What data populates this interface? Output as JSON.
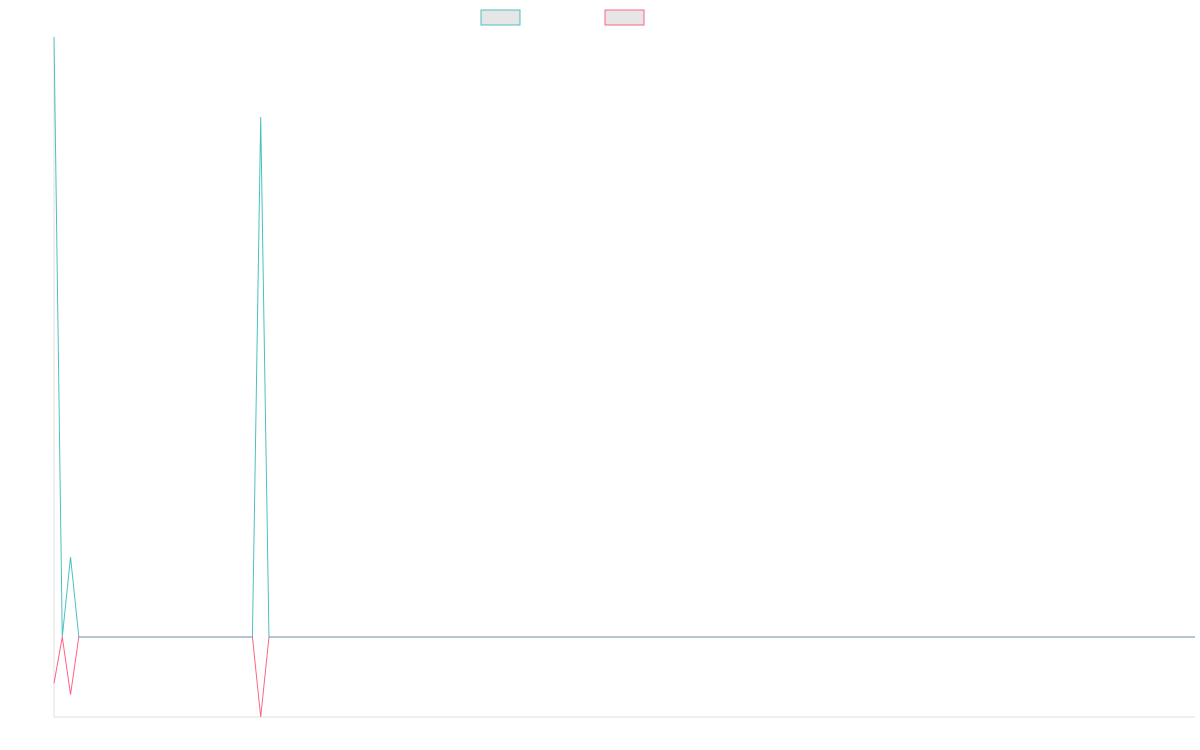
{
  "chart_data": {
    "type": "line",
    "title": "",
    "xlabel": "",
    "ylabel": "",
    "legend_position": "top-center",
    "grid": false,
    "ylim": [
      -1,
      7.5
    ],
    "x": [
      0,
      1,
      2,
      3,
      4,
      5,
      6,
      7,
      8,
      9,
      10,
      11,
      12,
      13,
      14,
      15,
      16,
      17,
      18,
      19,
      20,
      21,
      22,
      23,
      24,
      25,
      26,
      27,
      28,
      29,
      30,
      31,
      32,
      33,
      34,
      35,
      36,
      37,
      38,
      39,
      40,
      41,
      42,
      43,
      44,
      45,
      46,
      47,
      48,
      49,
      50,
      51,
      52,
      53,
      54,
      55,
      56,
      57,
      58,
      59,
      60,
      61,
      62,
      63,
      64,
      65,
      66,
      67,
      68,
      69,
      70,
      71,
      72,
      73,
      74,
      75,
      76,
      77,
      78,
      79,
      80,
      81,
      82,
      83,
      84,
      85,
      86,
      87,
      88,
      89,
      90,
      91,
      92,
      93,
      94,
      95,
      96,
      97,
      98,
      99,
      100,
      101,
      102,
      103,
      104,
      105,
      106,
      107,
      108,
      109,
      110,
      111,
      112,
      113,
      114,
      115,
      116,
      117,
      118,
      119,
      120,
      121,
      122,
      123,
      124,
      125,
      126,
      127,
      128,
      129,
      130,
      131,
      132,
      133,
      134,
      135,
      136,
      137,
      138
    ],
    "xlim": [
      0,
      138
    ],
    "series": [
      {
        "name": "",
        "color": "#4bc0c0",
        "values": [
          7.5,
          0,
          1,
          0,
          0,
          0,
          0,
          0,
          0,
          0,
          0,
          0,
          0,
          0,
          0,
          0,
          0,
          0,
          0,
          0,
          0,
          0,
          0,
          0,
          0,
          6.5,
          0,
          0,
          0,
          0,
          0,
          0,
          0,
          0,
          0,
          0,
          0,
          0,
          0,
          0,
          0,
          0,
          0,
          0,
          0,
          0,
          0,
          0,
          0,
          0,
          0,
          0,
          0,
          0,
          0,
          0,
          0,
          0,
          0,
          0,
          0,
          0,
          0,
          0,
          0,
          0,
          0,
          0,
          0,
          0,
          0,
          0,
          0,
          0,
          0,
          0,
          0,
          0,
          0,
          0,
          0,
          0,
          0,
          0,
          0,
          0,
          0,
          0,
          0,
          0,
          0,
          0,
          0,
          0,
          0,
          0,
          0,
          0,
          0,
          0,
          0,
          0,
          0,
          0,
          0,
          0,
          0,
          0,
          0,
          0,
          0,
          0,
          0,
          0,
          0,
          0,
          0,
          0,
          0,
          0,
          0,
          0,
          0,
          0,
          0,
          0,
          0,
          0,
          0,
          0,
          0,
          0,
          0,
          0,
          0,
          0,
          0,
          0,
          0
        ]
      },
      {
        "name": "",
        "color": "#ff6384",
        "values": [
          -0.58,
          0,
          -0.72,
          0,
          0,
          0,
          0,
          0,
          0,
          0,
          0,
          0,
          0,
          0,
          0,
          0,
          0,
          0,
          0,
          0,
          0,
          0,
          0,
          0,
          0,
          -1,
          0,
          0,
          0,
          0,
          0,
          0,
          0,
          0,
          0,
          0,
          0,
          0,
          0,
          0,
          0,
          0,
          0,
          0,
          0,
          0,
          0,
          0,
          0,
          0,
          0,
          0,
          0,
          0,
          0,
          0,
          0,
          0,
          0,
          0,
          0,
          0,
          0,
          0,
          0,
          0,
          0,
          0,
          0,
          0,
          0,
          0,
          0,
          0,
          0,
          0,
          0,
          0,
          0,
          0,
          0,
          0,
          0,
          0,
          0,
          0,
          0,
          0,
          0,
          0,
          0,
          0,
          0,
          0,
          0,
          0,
          0,
          0,
          0,
          0,
          0,
          0,
          0,
          0,
          0,
          0,
          0,
          0,
          0,
          0,
          0,
          0,
          0,
          0,
          0,
          0,
          0,
          0,
          0,
          0,
          0,
          0,
          0,
          0,
          0,
          0,
          0,
          0,
          0,
          0,
          0,
          0,
          0,
          0,
          0,
          0,
          0,
          0,
          0
        ]
      }
    ],
    "legend_fill": "#e6e6e6",
    "zero_line_color": "#6a8fa8"
  }
}
